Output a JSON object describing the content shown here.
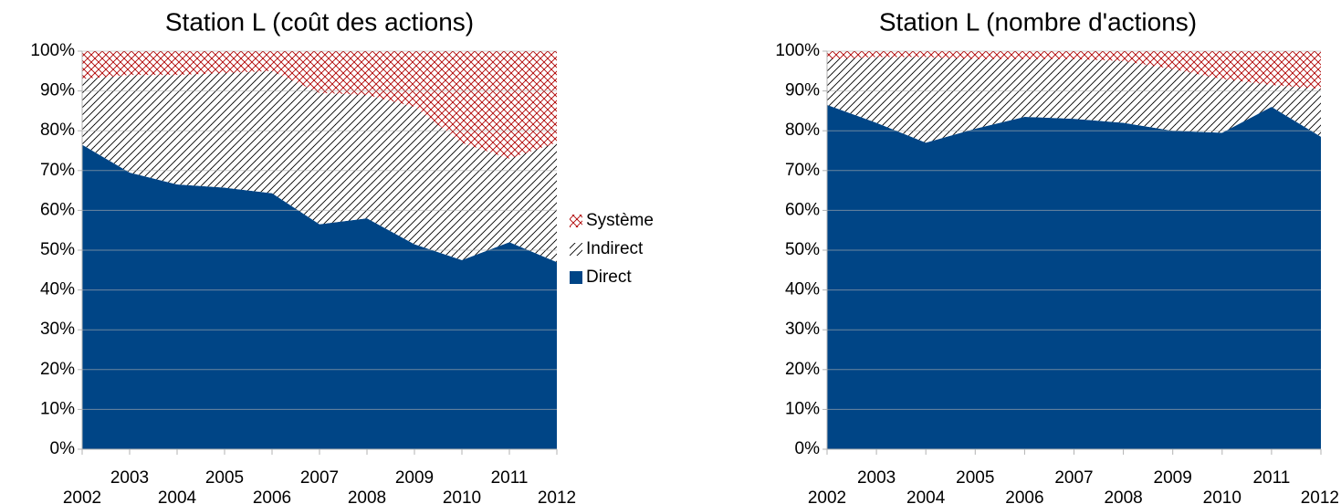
{
  "chart_data": [
    {
      "type": "stacked_area",
      "title": "Station L (coût des actions)",
      "categories": [
        "2002",
        "2003",
        "2004",
        "2005",
        "2006",
        "2007",
        "2008",
        "2009",
        "2010",
        "2011",
        "2012"
      ],
      "series": [
        {
          "name": "Direct",
          "color": "#004586",
          "hatch": "solid",
          "values": [
            76.5,
            69.5,
            66.5,
            65.7,
            64.3,
            56.5,
            58,
            51.5,
            47.5,
            52,
            47
          ]
        },
        {
          "name": "Indirect",
          "color": "#000000",
          "hatch": "diagonal",
          "values": [
            16.5,
            24.5,
            27.5,
            28.8,
            30.7,
            33,
            31,
            34.5,
            29.5,
            21,
            30
          ]
        },
        {
          "name": "Système",
          "color": "#b00000",
          "hatch": "cross",
          "values": [
            7,
            6,
            6,
            5.5,
            5,
            10.5,
            11,
            14,
            23,
            27,
            23
          ]
        }
      ],
      "ylim": [
        0,
        100
      ],
      "yticks": [
        {
          "value": 0,
          "label": "0%"
        },
        {
          "value": 10,
          "label": "10%"
        },
        {
          "value": 20,
          "label": "20%"
        },
        {
          "value": 30,
          "label": "30%"
        },
        {
          "value": 40,
          "label": "40%"
        },
        {
          "value": 50,
          "label": "50%"
        },
        {
          "value": 60,
          "label": "60%"
        },
        {
          "value": 70,
          "label": "70%"
        },
        {
          "value": 80,
          "label": "80%"
        },
        {
          "value": 90,
          "label": "90%"
        },
        {
          "value": 100,
          "label": "100%"
        }
      ],
      "grid": true,
      "legend": "right"
    },
    {
      "type": "stacked_area",
      "title": "Station L (nombre d'actions)",
      "categories": [
        "2002",
        "2003",
        "2004",
        "2005",
        "2006",
        "2007",
        "2008",
        "2009",
        "2010",
        "2011",
        "2012"
      ],
      "series": [
        {
          "name": "Direct",
          "color": "#004586",
          "hatch": "solid",
          "values": [
            86.5,
            82,
            77,
            80.5,
            83.5,
            83,
            82,
            80,
            79.5,
            86,
            78.5
          ]
        },
        {
          "name": "Indirect",
          "color": "#000000",
          "hatch": "diagonal",
          "values": [
            11.5,
            16.5,
            21.5,
            17.5,
            14.5,
            15,
            15.5,
            15.5,
            13.5,
            5.5,
            12
          ]
        },
        {
          "name": "Système",
          "color": "#b00000",
          "hatch": "cross",
          "values": [
            2,
            1.5,
            1.5,
            2,
            2,
            2,
            2.5,
            4.5,
            7,
            8.5,
            9.5
          ]
        }
      ],
      "ylim": [
        0,
        100
      ],
      "yticks": [
        {
          "value": 0,
          "label": "0%"
        },
        {
          "value": 10,
          "label": "10%"
        },
        {
          "value": 20,
          "label": "20%"
        },
        {
          "value": 30,
          "label": "30%"
        },
        {
          "value": 40,
          "label": "40%"
        },
        {
          "value": 50,
          "label": "50%"
        },
        {
          "value": 60,
          "label": "60%"
        },
        {
          "value": 70,
          "label": "70%"
        },
        {
          "value": 80,
          "label": "80%"
        },
        {
          "value": 90,
          "label": "90%"
        },
        {
          "value": 100,
          "label": "100%"
        }
      ],
      "grid": true
    }
  ]
}
